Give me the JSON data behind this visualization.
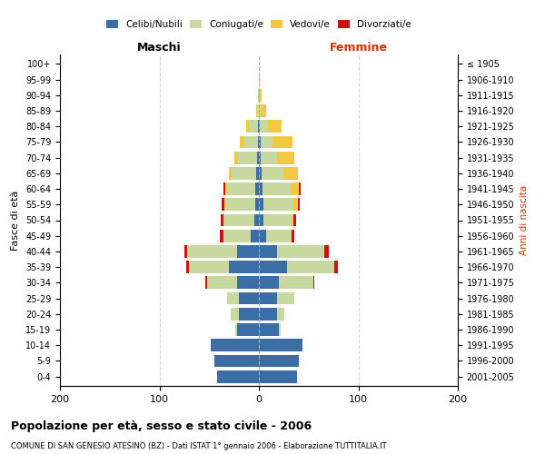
{
  "age_groups": [
    "0-4",
    "5-9",
    "10-14",
    "15-19",
    "20-24",
    "25-29",
    "30-34",
    "35-39",
    "40-44",
    "45-49",
    "50-54",
    "55-59",
    "60-64",
    "65-69",
    "70-74",
    "75-79",
    "80-84",
    "85-89",
    "90-94",
    "95-99",
    "100+"
  ],
  "birth_years": [
    "2001-2005",
    "1996-2000",
    "1991-1995",
    "1986-1990",
    "1981-1985",
    "1976-1980",
    "1971-1975",
    "1966-1970",
    "1961-1965",
    "1956-1960",
    "1951-1955",
    "1946-1950",
    "1941-1945",
    "1936-1940",
    "1931-1935",
    "1926-1930",
    "1921-1925",
    "1916-1920",
    "1911-1915",
    "1906-1910",
    "≤ 1905"
  ],
  "males": {
    "celibi": [
      42,
      45,
      48,
      22,
      20,
      20,
      22,
      30,
      22,
      8,
      5,
      4,
      4,
      3,
      2,
      1,
      1,
      0,
      0,
      0,
      0
    ],
    "coniugati": [
      0,
      0,
      0,
      2,
      8,
      12,
      30,
      40,
      50,
      28,
      30,
      30,
      28,
      24,
      19,
      14,
      9,
      2,
      1,
      0,
      0
    ],
    "vedovi": [
      0,
      0,
      0,
      0,
      0,
      0,
      0,
      0,
      0,
      0,
      1,
      1,
      2,
      3,
      4,
      4,
      3,
      1,
      0,
      0,
      0
    ],
    "divorziati": [
      0,
      0,
      0,
      0,
      0,
      0,
      2,
      3,
      3,
      3,
      2,
      2,
      2,
      0,
      0,
      0,
      0,
      0,
      0,
      0,
      0
    ]
  },
  "females": {
    "nubili": [
      38,
      40,
      44,
      20,
      18,
      18,
      20,
      28,
      18,
      7,
      5,
      5,
      4,
      3,
      2,
      2,
      1,
      0,
      0,
      0,
      0
    ],
    "coniugate": [
      0,
      0,
      0,
      2,
      8,
      18,
      35,
      48,
      48,
      25,
      28,
      30,
      28,
      22,
      16,
      12,
      8,
      2,
      1,
      0,
      0
    ],
    "vedove": [
      0,
      0,
      0,
      0,
      0,
      0,
      0,
      0,
      0,
      1,
      2,
      4,
      8,
      14,
      18,
      20,
      14,
      5,
      2,
      1,
      0
    ],
    "divorziate": [
      0,
      0,
      0,
      0,
      0,
      0,
      1,
      3,
      4,
      3,
      2,
      2,
      2,
      0,
      0,
      0,
      0,
      0,
      0,
      0,
      0
    ]
  },
  "colors": {
    "celibi": "#3b6ea5",
    "coniugati": "#c8d9a0",
    "vedovi": "#f5c842",
    "divorziati": "#cc1111"
  },
  "xlim": 200,
  "title": "Popolazione per età, sesso e stato civile - 2006",
  "subtitle": "COMUNE DI SAN GENESIO ATESINO (BZ) - Dati ISTAT 1° gennaio 2006 - Elaborazione TUTTITALIA.IT",
  "ylabel": "Fasce di età",
  "ylabel_right": "Anni di nascita",
  "xlabel_left": "Maschi",
  "xlabel_right": "Femmine"
}
